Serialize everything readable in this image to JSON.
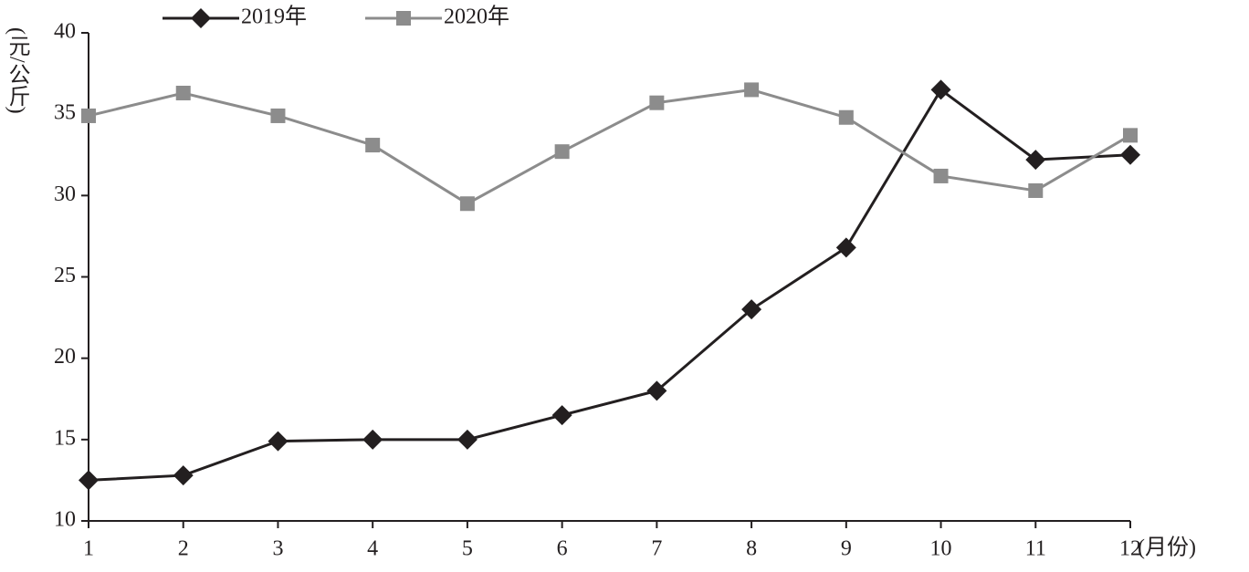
{
  "chart_data": {
    "type": "line",
    "x_label": "(月份)",
    "y_label": "(元/公斤)",
    "x": [
      1,
      2,
      3,
      4,
      5,
      6,
      7,
      8,
      9,
      10,
      11,
      12
    ],
    "series": [
      {
        "name": "2019年",
        "color": "#231f20",
        "marker": "diamond",
        "values": [
          12.5,
          12.8,
          14.9,
          15.0,
          15.0,
          16.5,
          18.0,
          23.0,
          26.8,
          36.5,
          32.2,
          32.5
        ]
      },
      {
        "name": "2020年",
        "color": "#8c8c8c",
        "marker": "square",
        "values": [
          34.9,
          36.3,
          34.9,
          33.1,
          29.5,
          32.7,
          35.7,
          36.5,
          34.8,
          31.2,
          30.3,
          33.7
        ]
      }
    ],
    "xlim": [
      1,
      12
    ],
    "xticks": [
      1,
      2,
      3,
      4,
      5,
      6,
      7,
      8,
      9,
      10,
      11,
      12
    ],
    "ylim": [
      10,
      40
    ],
    "yticks": [
      10,
      15,
      20,
      25,
      30,
      35,
      40
    ],
    "grid": false,
    "legend": "top"
  }
}
